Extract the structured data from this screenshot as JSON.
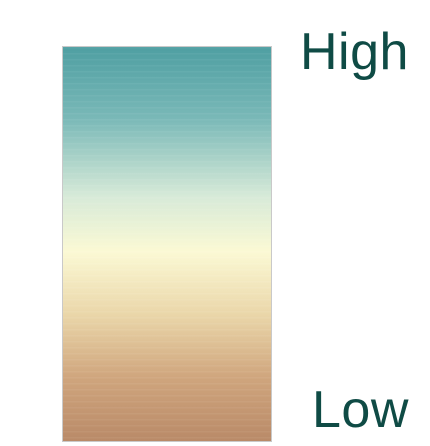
{
  "legend": {
    "high_label": "High",
    "low_label": "Low",
    "colors": {
      "high": "#4f9fa2",
      "mid": "#fbf9d4",
      "low": "#b98a68",
      "label_text": "#0f4b45"
    }
  }
}
